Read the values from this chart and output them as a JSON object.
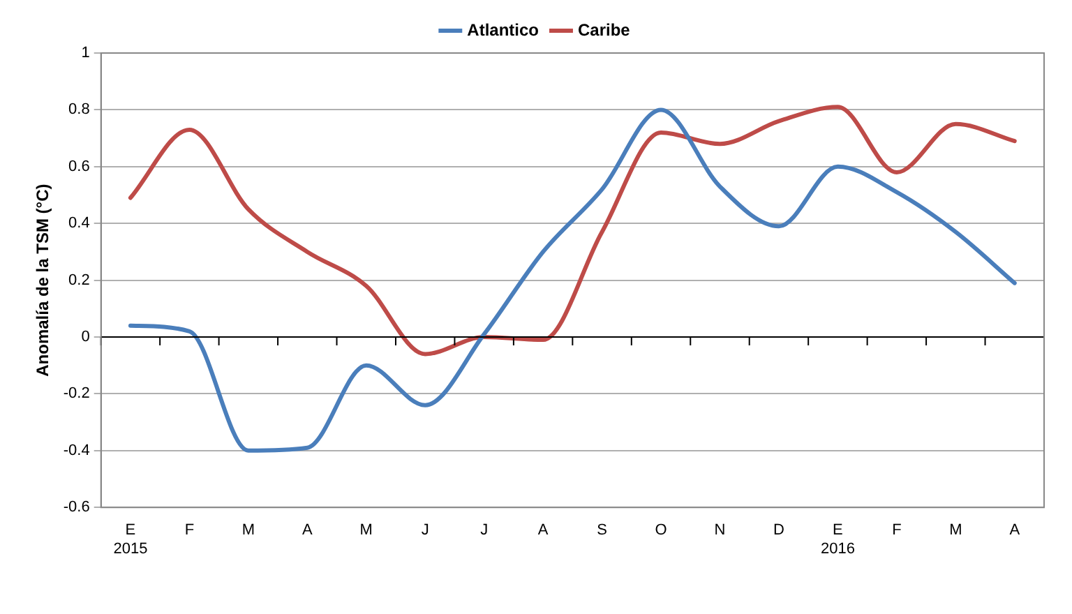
{
  "chart_data": {
    "type": "line",
    "ylabel": "Anomalía de la TSM (°C)",
    "categories": [
      "E\n2015",
      "F",
      "M",
      "A",
      "M",
      "J",
      "J",
      "A",
      "S",
      "O",
      "N",
      "D",
      "E\n2016",
      "F",
      "M",
      "A"
    ],
    "series": [
      {
        "name": "Atlantico",
        "color": "#4a7ebb",
        "values": [
          0.04,
          0.02,
          -0.4,
          -0.39,
          -0.1,
          -0.24,
          0.01,
          0.3,
          0.52,
          0.8,
          0.53,
          0.39,
          0.6,
          0.51,
          0.37,
          0.19
        ]
      },
      {
        "name": "Caribe",
        "color": "#be4b48",
        "values": [
          0.49,
          0.73,
          0.45,
          0.3,
          0.18,
          -0.06,
          0,
          -0.01,
          0.37,
          0.72,
          0.68,
          0.76,
          0.81,
          0.58,
          0.75,
          0.69
        ]
      }
    ],
    "ylim": [
      -0.6,
      1
    ],
    "yticks": [
      -0.6,
      -0.4,
      -0.2,
      0,
      0.2,
      0.4,
      0.6,
      0.8,
      1
    ],
    "grid": "y",
    "legend": "top",
    "marker": "none",
    "line_style": "solid"
  }
}
